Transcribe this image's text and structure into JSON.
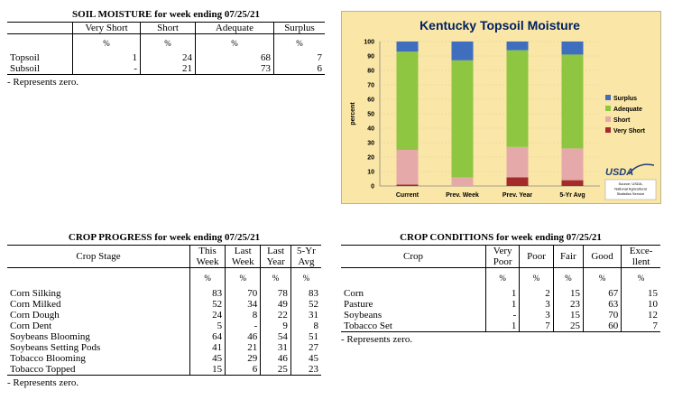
{
  "soil": {
    "title": "SOIL MOISTURE for week ending 07/25/21",
    "columns": [
      "Very Short",
      "Short",
      "Adequate",
      "Surplus"
    ],
    "unit": "%",
    "rows": [
      {
        "label": "Topsoil",
        "values": [
          "1",
          "24",
          "68",
          "7"
        ]
      },
      {
        "label": "Subsoil",
        "values": [
          "-",
          "21",
          "73",
          "6"
        ]
      }
    ],
    "note": "- Represents zero."
  },
  "progress": {
    "title": "CROP PROGRESS for week ending 07/25/21",
    "stage_header": "Crop Stage",
    "col1a": "This",
    "col1b": "Week",
    "col2a": "Last",
    "col2b": "Week",
    "col3a": "Last",
    "col3b": "Year",
    "col4a": "5-Yr",
    "col4b": "Avg",
    "unit": "%",
    "rows": [
      {
        "label": "Corn Silking",
        "values": [
          "83",
          "70",
          "78",
          "83"
        ]
      },
      {
        "label": "Corn Milked",
        "values": [
          "52",
          "34",
          "49",
          "52"
        ]
      },
      {
        "label": "Corn Dough",
        "values": [
          "24",
          "8",
          "22",
          "31"
        ]
      },
      {
        "label": "Corn Dent",
        "values": [
          "5",
          "-",
          "9",
          "8"
        ]
      },
      {
        "label": "Soybeans Blooming",
        "values": [
          "64",
          "46",
          "54",
          "51"
        ]
      },
      {
        "label": "Soybeans Setting Pods",
        "values": [
          "41",
          "21",
          "31",
          "27"
        ]
      },
      {
        "label": "Tobacco Blooming",
        "values": [
          "45",
          "29",
          "46",
          "45"
        ]
      },
      {
        "label": "Tobacco Topped",
        "values": [
          "15",
          "6",
          "25",
          "23"
        ]
      }
    ],
    "note": "- Represents zero."
  },
  "conditions": {
    "title": "CROP CONDITIONS for week ending 07/25/21",
    "crop_header": "Crop",
    "vp_a": "Very",
    "vp_b": "Poor",
    "poor": "Poor",
    "fair": "Fair",
    "good": "Good",
    "ex_a": "Exce-",
    "ex_b": "llent",
    "unit": "%",
    "rows": [
      {
        "label": "Corn",
        "values": [
          "1",
          "2",
          "15",
          "67",
          "15"
        ]
      },
      {
        "label": "Pasture",
        "values": [
          "1",
          "3",
          "23",
          "63",
          "10"
        ]
      },
      {
        "label": "Soybeans",
        "values": [
          "-",
          "3",
          "15",
          "70",
          "12"
        ]
      },
      {
        "label": "Tobacco Set",
        "values": [
          "1",
          "7",
          "25",
          "60",
          "7"
        ]
      }
    ],
    "note": "- Represents zero."
  },
  "chart_data": {
    "type": "bar",
    "stacked": true,
    "title": "Kentucky Topsoil Moisture",
    "ylabel": "percent",
    "ylim": [
      0,
      100
    ],
    "yticks": [
      "0",
      "10",
      "20",
      "30",
      "40",
      "50",
      "60",
      "70",
      "80",
      "90",
      "100"
    ],
    "categories": [
      "Current",
      "Prev. Week",
      "Prev. Year",
      "5-Yr Avg"
    ],
    "series": [
      {
        "name": "Very Short",
        "color": "#a52a2a",
        "values": [
          1,
          0,
          6,
          4
        ]
      },
      {
        "name": "Short",
        "color": "#e6a9a9",
        "values": [
          24,
          6,
          21,
          22
        ]
      },
      {
        "name": "Adequate",
        "color": "#8ec641",
        "values": [
          68,
          81,
          67,
          65
        ]
      },
      {
        "name": "Surplus",
        "color": "#3f6ebf",
        "values": [
          7,
          13,
          6,
          9
        ]
      }
    ],
    "legend_order": [
      "Surplus",
      "Adequate",
      "Short",
      "Very Short"
    ],
    "legend_position": "right",
    "logo_text": "USDA",
    "source_lines": [
      "Source: USDA,",
      "National Agricultural",
      "Statistics Service"
    ]
  }
}
